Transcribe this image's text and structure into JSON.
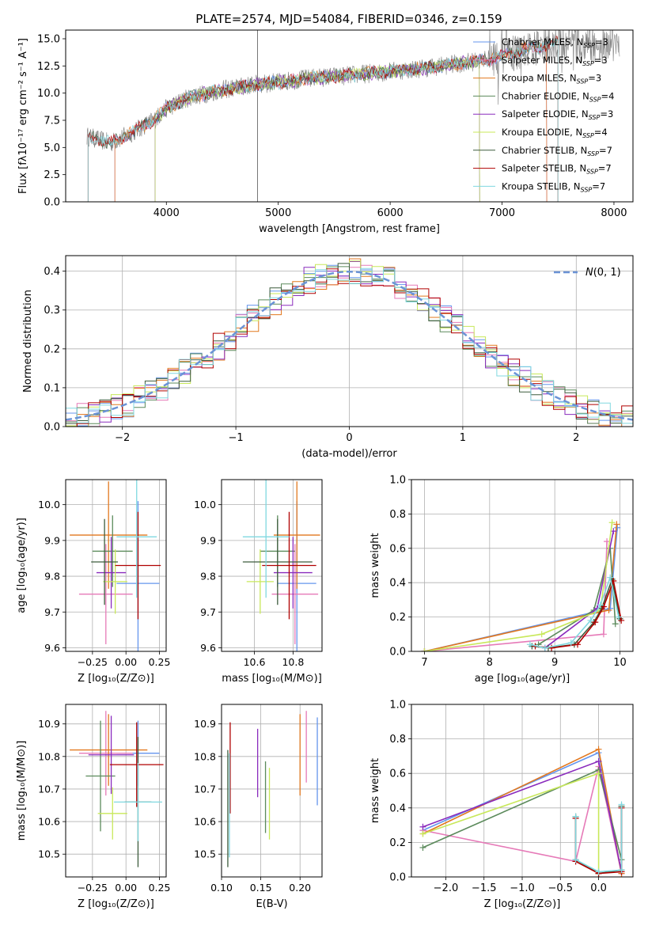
{
  "figure": {
    "title": "PLATE=2574, MJD=54084, FIBERID=0346, z=0.159"
  },
  "colors": {
    "Chabrier MILES": "#6495ed",
    "Salpeter MILES": "#e67ab8",
    "Kroupa MILES": "#e2781f",
    "Chabrier ELODIE": "#5b8a5b",
    "Salpeter ELODIE": "#8a2bbd",
    "Kroupa ELODIE": "#c8e85a",
    "Chabrier STELIB": "#3d5c3d",
    "Salpeter STELIB": "#b00000",
    "Kroupa STELIB": "#80d8e0",
    "data": "#808080",
    "gaussian": "#6b93d6",
    "grid": "#b0b0b0"
  },
  "chart_data": [
    {
      "id": "spectrum",
      "type": "line",
      "title": "PLATE=2574, MJD=54084, FIBERID=0346, z=0.159",
      "xlabel": "wavelength [Angstrom, rest frame]",
      "ylabel": "Flux [fλ10⁻¹⁷ erg cm⁻² s⁻¹ A⁻¹]",
      "xlim": [
        3100,
        8170
      ],
      "ylim": [
        0,
        15.8
      ],
      "xticks": [
        4000,
        5000,
        6000,
        7000,
        8000
      ],
      "yticks": [
        0.0,
        2.5,
        5.0,
        7.5,
        10.0,
        12.5,
        15.0
      ],
      "legend_position": "top-right",
      "legend": [
        "Chabrier MILES, N_SSP=3",
        "Salpeter MILES, N_SSP=3",
        "Kroupa MILES, N_SSP=3",
        "Chabrier ELODIE, N_SSP=4",
        "Salpeter ELODIE, N_SSP=3",
        "Kroupa ELODIE, N_SSP=4",
        "Chabrier STELIB, N_SSP=7",
        "Salpeter STELIB, N_SSP=7",
        "Kroupa STELIB, N_SSP=7"
      ],
      "legend_display": [
        {
          "base": "Chabrier MILES, N",
          "eq": "=3"
        },
        {
          "base": "Salpeter MILES, N",
          "eq": "=3"
        },
        {
          "base": "Kroupa MILES, N",
          "eq": "=3"
        },
        {
          "base": "Chabrier ELODIE, N",
          "eq": "=4"
        },
        {
          "base": "Salpeter ELODIE, N",
          "eq": "=3"
        },
        {
          "base": "Kroupa ELODIE, N",
          "eq": "=4"
        },
        {
          "base": "Chabrier STELIB, N",
          "eq": "=7"
        },
        {
          "base": "Salpeter STELIB, N",
          "eq": "=7"
        },
        {
          "base": "Kroupa STELIB, N",
          "eq": "=7"
        }
      ],
      "continuum": {
        "x": [
          3300,
          3500,
          3700,
          3900,
          4000,
          4200,
          4500,
          4800,
          5000,
          5300,
          5600,
          6000,
          6300,
          6600,
          6900,
          7200,
          7500,
          7800,
          8050
        ],
        "y": [
          6.0,
          5.4,
          6.4,
          7.6,
          8.6,
          9.6,
          10.3,
          10.8,
          11.0,
          11.4,
          11.6,
          12.0,
          12.3,
          12.7,
          13.1,
          14.0,
          14.6,
          14.4,
          14.3
        ]
      },
      "model_wavelength_range": {
        "Chabrier MILES": [
          3540,
          7400
        ],
        "Salpeter MILES": [
          3540,
          7400
        ],
        "Kroupa MILES": [
          3540,
          7400
        ],
        "Chabrier ELODIE": [
          3900,
          6800
        ],
        "Salpeter ELODIE": [
          3900,
          6800
        ],
        "Kroupa ELODIE": [
          3900,
          6800
        ],
        "Chabrier STELIB": [
          3300,
          7500
        ],
        "Salpeter STELIB": [
          3300,
          7500
        ],
        "Kroupa STELIB": [
          3300,
          7500
        ]
      }
    },
    {
      "id": "residuals",
      "type": "area",
      "xlabel": "(data-model)/error",
      "ylabel": "Normed distribution",
      "xlim": [
        -2.5,
        2.5
      ],
      "ylim": [
        0,
        0.44
      ],
      "xticks": [
        -2,
        -1,
        0,
        1,
        2
      ],
      "yticks": [
        0.0,
        0.1,
        0.2,
        0.3,
        0.4
      ],
      "legend_position": "top-right",
      "reference_curve": {
        "name": "N(0,1)",
        "mean": 0,
        "sigma": 1,
        "style": "dashed"
      },
      "bin_width": 0.1
    },
    {
      "id": "z_age",
      "type": "scatter",
      "xlabel": "Z [log10(Z/Z⊙)]",
      "ylabel": "age  [log10(age/yr)]",
      "xlim": [
        -0.45,
        0.3
      ],
      "ylim": [
        9.59,
        10.07
      ],
      "xticks": [
        -0.25,
        0.0,
        0.25
      ],
      "yticks": [
        9.6,
        9.7,
        9.8,
        9.9,
        10.0
      ],
      "points": [
        {
          "model": "Chabrier MILES",
          "x": 0.09,
          "xerr": 0.16,
          "y": 9.78,
          "yerr": 0.23
        },
        {
          "model": "Salpeter MILES",
          "x": -0.15,
          "xerr": 0.2,
          "y": 9.75,
          "yerr": 0.14
        },
        {
          "model": "Kroupa MILES",
          "x": -0.13,
          "xerr": 0.29,
          "y": 9.915,
          "yerr": 0.15
        },
        {
          "model": "Chabrier ELODIE",
          "x": -0.1,
          "xerr": 0.15,
          "y": 9.87,
          "yerr": 0.1
        },
        {
          "model": "Salpeter ELODIE",
          "x": -0.11,
          "xerr": 0.11,
          "y": 9.81,
          "yerr": 0.1
        },
        {
          "model": "Kroupa ELODIE",
          "x": -0.08,
          "xerr": 0.09,
          "y": 9.785,
          "yerr": 0.09
        },
        {
          "model": "Chabrier STELIB",
          "x": -0.16,
          "xerr": 0.1,
          "y": 9.84,
          "yerr": 0.12
        },
        {
          "model": "Salpeter STELIB",
          "x": 0.09,
          "xerr": 0.17,
          "y": 9.83,
          "yerr": 0.15
        },
        {
          "model": "Kroupa STELIB",
          "x": 0.08,
          "xerr": 0.15,
          "y": 9.91,
          "yerr": 0.17
        }
      ]
    },
    {
      "id": "mass_age",
      "type": "scatter",
      "xlabel": "mass [log10(M/M⊙)]",
      "ylabel": "",
      "xlim": [
        10.43,
        10.95
      ],
      "ylim": [
        9.59,
        10.07
      ],
      "xticks": [
        10.6,
        10.8
      ],
      "yticks": [
        9.6,
        9.7,
        9.8,
        9.9,
        10.0
      ],
      "points": [
        {
          "model": "Chabrier MILES",
          "x": 10.82,
          "xerr": 0.1,
          "y": 9.78,
          "yerr": 0.23
        },
        {
          "model": "Salpeter MILES",
          "x": 10.81,
          "xerr": 0.12,
          "y": 9.75,
          "yerr": 0.14
        },
        {
          "model": "Kroupa MILES",
          "x": 10.82,
          "xerr": 0.12,
          "y": 9.915,
          "yerr": 0.15
        },
        {
          "model": "Chabrier ELODIE",
          "x": 10.72,
          "xerr": 0.09,
          "y": 9.87,
          "yerr": 0.1
        },
        {
          "model": "Salpeter ELODIE",
          "x": 10.8,
          "xerr": 0.1,
          "y": 9.81,
          "yerr": 0.1
        },
        {
          "model": "Kroupa ELODIE",
          "x": 10.63,
          "xerr": 0.07,
          "y": 9.785,
          "yerr": 0.09
        },
        {
          "model": "Chabrier STELIB",
          "x": 10.72,
          "xerr": 0.18,
          "y": 9.84,
          "yerr": 0.12
        },
        {
          "model": "Salpeter STELIB",
          "x": 10.78,
          "xerr": 0.14,
          "y": 9.83,
          "yerr": 0.15
        },
        {
          "model": "Kroupa STELIB",
          "x": 10.66,
          "xerr": 0.12,
          "y": 9.91,
          "yerr": 0.17
        }
      ]
    },
    {
      "id": "age_weight",
      "type": "line",
      "xlabel": "age  [log10(age/yr)]",
      "ylabel": "mass weight",
      "xlim": [
        6.8,
        10.2
      ],
      "ylim": [
        0,
        1.0
      ],
      "xticks": [
        7,
        8,
        9,
        10
      ],
      "yticks": [
        0.0,
        0.2,
        0.4,
        0.6,
        0.8,
        1.0
      ],
      "series": [
        {
          "model": "Chabrier MILES",
          "x": [
            7.0,
            9.85,
            9.96
          ],
          "y": [
            0.0,
            0.25,
            0.72
          ]
        },
        {
          "model": "Salpeter MILES",
          "x": [
            7.0,
            9.75,
            9.8
          ],
          "y": [
            0.0,
            0.1,
            0.64
          ]
        },
        {
          "model": "Kroupa MILES",
          "x": [
            7.0,
            9.83,
            9.95
          ],
          "y": [
            0.0,
            0.24,
            0.74
          ]
        },
        {
          "model": "Chabrier ELODIE",
          "x": [
            8.75,
            9.6,
            9.85,
            9.93
          ],
          "y": [
            0.04,
            0.24,
            0.6,
            0.16
          ]
        },
        {
          "model": "Salpeter ELODIE",
          "x": [
            8.85,
            9.65,
            9.9
          ],
          "y": [
            0.02,
            0.25,
            0.7
          ]
        },
        {
          "model": "Kroupa ELODIE",
          "x": [
            7.0,
            8.8,
            9.7,
            9.88
          ],
          "y": [
            0.0,
            0.1,
            0.24,
            0.75
          ]
        },
        {
          "model": "Chabrier STELIB",
          "x": [
            8.65,
            8.9,
            9.3,
            9.6,
            9.72,
            9.88,
            10.0
          ],
          "y": [
            0.03,
            0.02,
            0.04,
            0.17,
            0.25,
            0.42,
            0.19
          ]
        },
        {
          "model": "Salpeter STELIB",
          "x": [
            8.7,
            8.95,
            9.35,
            9.62,
            9.75,
            9.9,
            10.02
          ],
          "y": [
            0.03,
            0.02,
            0.04,
            0.17,
            0.26,
            0.41,
            0.18
          ]
        },
        {
          "model": "Kroupa STELIB",
          "x": [
            8.62,
            8.85,
            9.25,
            9.55,
            9.7,
            9.85,
            9.98
          ],
          "y": [
            0.04,
            0.02,
            0.05,
            0.18,
            0.27,
            0.43,
            0.2
          ]
        }
      ]
    },
    {
      "id": "z_mass",
      "type": "scatter",
      "xlabel": "Z [log10(Z/Z⊙)]",
      "ylabel": "mass [log10(M/M⊙)]",
      "xlim": [
        -0.45,
        0.3
      ],
      "ylim": [
        10.43,
        10.96
      ],
      "xticks": [
        -0.25,
        0.0,
        0.25
      ],
      "yticks": [
        10.5,
        10.6,
        10.7,
        10.8,
        10.9
      ],
      "points": [
        {
          "model": "Chabrier MILES",
          "x": 0.09,
          "xerr": 0.16,
          "y": 10.81,
          "yerr": 0.1
        },
        {
          "model": "Salpeter MILES",
          "x": -0.15,
          "xerr": 0.2,
          "y": 10.81,
          "yerr": 0.13
        },
        {
          "model": "Kroupa MILES",
          "x": -0.13,
          "xerr": 0.29,
          "y": 10.82,
          "yerr": 0.11
        },
        {
          "model": "Chabrier ELODIE",
          "x": -0.19,
          "xerr": 0.11,
          "y": 10.74,
          "yerr": 0.17
        },
        {
          "model": "Salpeter ELODIE",
          "x": -0.11,
          "xerr": 0.17,
          "y": 10.805,
          "yerr": 0.12
        },
        {
          "model": "Kroupa ELODIE",
          "x": -0.1,
          "xerr": 0.11,
          "y": 10.625,
          "yerr": 0.08
        },
        {
          "model": "Chabrier STELIB",
          "x": 0.09,
          "xerr": 0.1,
          "y": 10.66,
          "yerr": 0.2
        },
        {
          "model": "Salpeter STELIB",
          "x": 0.08,
          "xerr": 0.2,
          "y": 10.775,
          "yerr": 0.13
        },
        {
          "model": "Kroupa STELIB",
          "x": 0.09,
          "xerr": 0.18,
          "y": 10.66,
          "yerr": 0.12
        }
      ]
    },
    {
      "id": "ebv_mass",
      "type": "scatter",
      "xlabel": "E(B-V)",
      "ylabel": "",
      "xlim": [
        0.1,
        0.228
      ],
      "ylim": [
        10.43,
        10.96
      ],
      "xticks": [
        0.1,
        0.15,
        0.2
      ],
      "yticks": [
        10.5,
        10.6,
        10.7,
        10.8,
        10.9
      ],
      "points": [
        {
          "model": "Chabrier MILES",
          "x": 0.222,
          "y": 10.785,
          "yerr": 0.135
        },
        {
          "model": "Salpeter MILES",
          "x": 0.208,
          "y": 10.83,
          "yerr": 0.11
        },
        {
          "model": "Kroupa MILES",
          "x": 0.2,
          "y": 10.805,
          "yerr": 0.125
        },
        {
          "model": "Chabrier ELODIE",
          "x": 0.156,
          "y": 10.675,
          "yerr": 0.11
        },
        {
          "model": "Salpeter ELODIE",
          "x": 0.146,
          "y": 10.78,
          "yerr": 0.105
        },
        {
          "model": "Kroupa ELODIE",
          "x": 0.161,
          "y": 10.655,
          "yerr": 0.11
        },
        {
          "model": "Chabrier STELIB",
          "x": 0.108,
          "y": 10.64,
          "yerr": 0.18
        },
        {
          "model": "Salpeter STELIB",
          "x": 0.111,
          "y": 10.765,
          "yerr": 0.14
        },
        {
          "model": "Kroupa STELIB",
          "x": 0.11,
          "y": 10.65,
          "yerr": 0.16
        }
      ]
    },
    {
      "id": "z_weight",
      "type": "line",
      "xlabel": "Z [log10(Z/Z⊙)]",
      "ylabel": "mass weight",
      "xlim": [
        -2.45,
        0.45
      ],
      "ylim": [
        0,
        1.0
      ],
      "xticks": [
        -2.0,
        -1.5,
        -1.0,
        -0.5,
        0.0
      ],
      "yticks": [
        0.0,
        0.2,
        0.4,
        0.6,
        0.8,
        1.0
      ],
      "series": [
        {
          "model": "Chabrier MILES",
          "x": [
            -2.3,
            0.0,
            0.3
          ],
          "y": [
            0.27,
            0.72,
            0.02
          ]
        },
        {
          "model": "Salpeter MILES",
          "x": [
            -2.3,
            -0.3,
            0.0,
            0.3
          ],
          "y": [
            0.27,
            0.09,
            0.64,
            0.02
          ]
        },
        {
          "model": "Kroupa MILES",
          "x": [
            -2.3,
            0.0,
            0.3
          ],
          "y": [
            0.25,
            0.74,
            0.02
          ]
        },
        {
          "model": "Chabrier ELODIE",
          "x": [
            -2.3,
            0.0,
            0.3
          ],
          "y": [
            0.17,
            0.62,
            0.1
          ]
        },
        {
          "model": "Salpeter ELODIE",
          "x": [
            -2.3,
            0.0,
            0.3
          ],
          "y": [
            0.29,
            0.67,
            0.03
          ]
        },
        {
          "model": "Kroupa ELODIE",
          "x": [
            -2.3,
            0.0,
            0.0
          ],
          "y": [
            0.25,
            0.6,
            0.02
          ]
        },
        {
          "model": "Chabrier STELIB",
          "x": [
            -0.3,
            -0.3,
            0.0,
            0.3,
            0.3
          ],
          "y": [
            0.35,
            0.1,
            0.02,
            0.04,
            0.41
          ]
        },
        {
          "model": "Salpeter STELIB",
          "x": [
            -0.3,
            -0.3,
            0.0,
            0.3,
            0.3
          ],
          "y": [
            0.34,
            0.09,
            0.02,
            0.03,
            0.4
          ]
        },
        {
          "model": "Kroupa STELIB",
          "x": [
            -0.3,
            -0.3,
            0.0,
            0.3,
            0.3
          ],
          "y": [
            0.35,
            0.1,
            0.03,
            0.04,
            0.42
          ]
        }
      ]
    }
  ]
}
